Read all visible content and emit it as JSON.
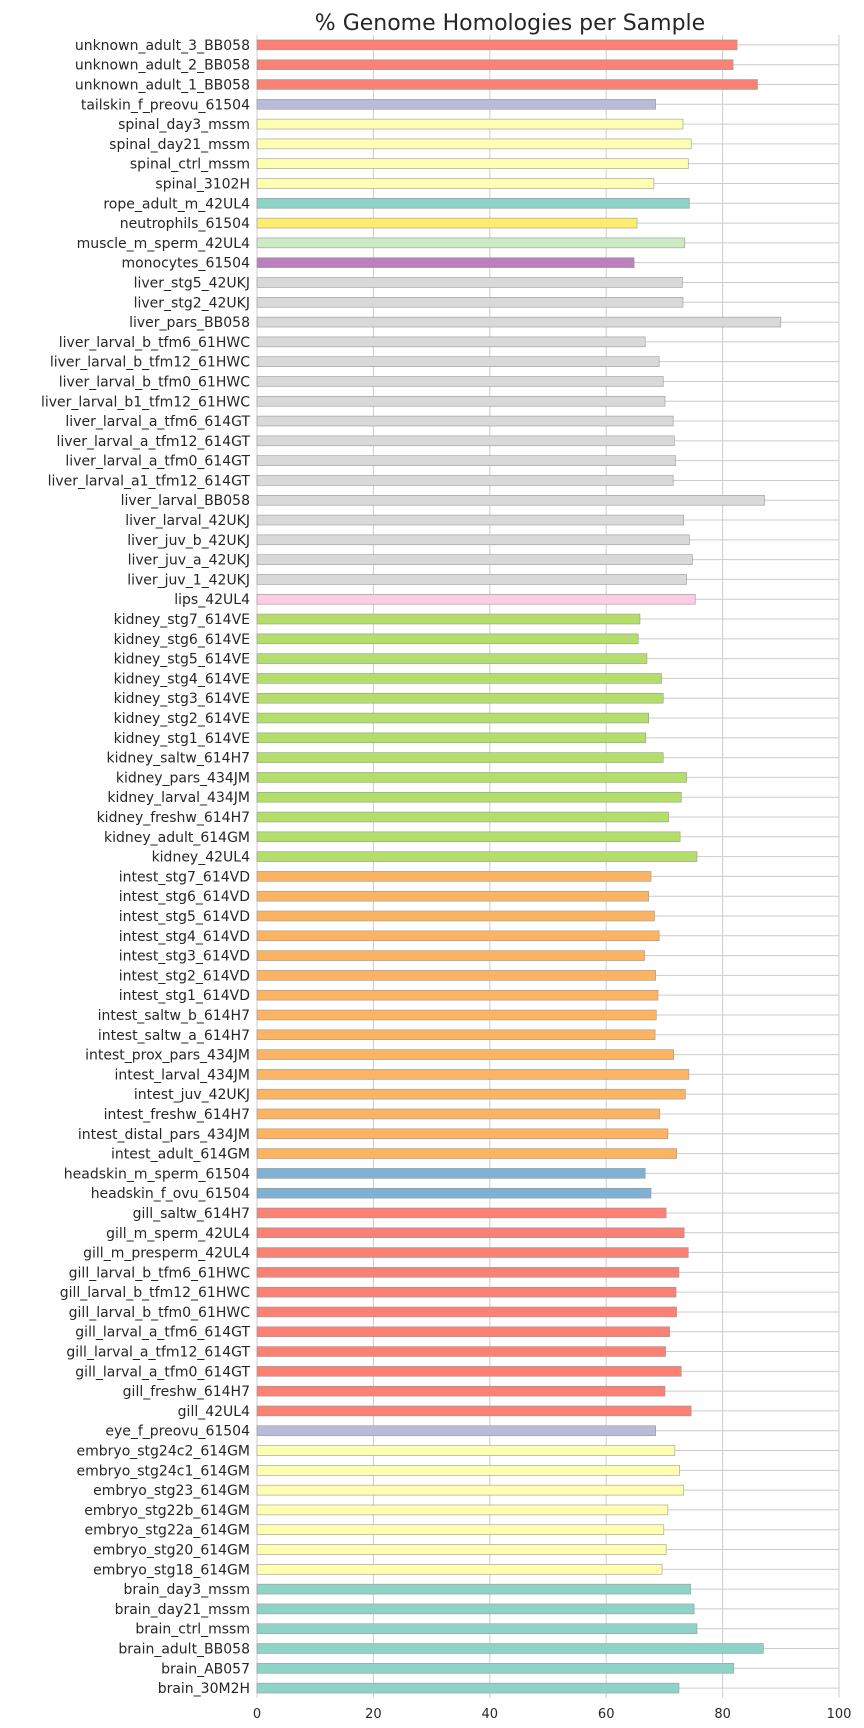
{
  "chart_data": {
    "type": "bar",
    "orientation": "horizontal",
    "title": "% Genome Homologies per Sample",
    "xlabel": "",
    "ylabel": "",
    "xlim": [
      0,
      100
    ],
    "xticks": [
      "0",
      "20",
      "40",
      "60",
      "80",
      "100"
    ],
    "grid": true,
    "legend": "none",
    "categories": [
      "unknown_adult_3_BB058",
      "unknown_adult_2_BB058",
      "unknown_adult_1_BB058",
      "tailskin_f_preovu_61504",
      "spinal_day3_mssm",
      "spinal_day21_mssm",
      "spinal_ctrl_mssm",
      "spinal_3102H",
      "rope_adult_m_42UL4",
      "neutrophils_61504",
      "muscle_m_sperm_42UL4",
      "monocytes_61504",
      "liver_stg5_42UKJ",
      "liver_stg2_42UKJ",
      "liver_pars_BB058",
      "liver_larval_b_tfm6_61HWC",
      "liver_larval_b_tfm12_61HWC",
      "liver_larval_b_tfm0_61HWC",
      "liver_larval_b1_tfm12_61HWC",
      "liver_larval_a_tfm6_614GT",
      "liver_larval_a_tfm12_614GT",
      "liver_larval_a_tfm0_614GT",
      "liver_larval_a1_tfm12_614GT",
      "liver_larval_BB058",
      "liver_larval_42UKJ",
      "liver_juv_b_42UKJ",
      "liver_juv_a_42UKJ",
      "liver_juv_1_42UKJ",
      "lips_42UL4",
      "kidney_stg7_614VE",
      "kidney_stg6_614VE",
      "kidney_stg5_614VE",
      "kidney_stg4_614VE",
      "kidney_stg3_614VE",
      "kidney_stg2_614VE",
      "kidney_stg1_614VE",
      "kidney_saltw_614H7",
      "kidney_pars_434JM",
      "kidney_larval_434JM",
      "kidney_freshw_614H7",
      "kidney_adult_614GM",
      "kidney_42UL4",
      "intest_stg7_614VD",
      "intest_stg6_614VD",
      "intest_stg5_614VD",
      "intest_stg4_614VD",
      "intest_stg3_614VD",
      "intest_stg2_614VD",
      "intest_stg1_614VD",
      "intest_saltw_b_614H7",
      "intest_saltw_a_614H7",
      "intest_prox_pars_434JM",
      "intest_larval_434JM",
      "intest_juv_42UKJ",
      "intest_freshw_614H7",
      "intest_distal_pars_434JM",
      "intest_adult_614GM",
      "headskin_m_sperm_61504",
      "headskin_f_ovu_61504",
      "gill_saltw_614H7",
      "gill_m_sperm_42UL4",
      "gill_m_presperm_42UL4",
      "gill_larval_b_tfm6_61HWC",
      "gill_larval_b_tfm12_61HWC",
      "gill_larval_b_tfm0_61HWC",
      "gill_larval_a_tfm6_614GT",
      "gill_larval_a_tfm12_614GT",
      "gill_larval_a_tfm0_614GT",
      "gill_freshw_614H7",
      "gill_42UL4",
      "eye_f_preovu_61504",
      "embryo_stg24c2_614GM",
      "embryo_stg24c1_614GM",
      "embryo_stg23_614GM",
      "embryo_stg22b_614GM",
      "embryo_stg22a_614GM",
      "embryo_stg20_614GM",
      "embryo_stg18_614GM",
      "brain_day3_mssm",
      "brain_day21_mssm",
      "brain_ctrl_mssm",
      "brain_adult_BB058",
      "brain_AB057",
      "brain_30M2H"
    ],
    "values": [
      82.5,
      81.8,
      86.0,
      68.5,
      73.2,
      74.6,
      74.1,
      68.2,
      74.3,
      65.3,
      73.5,
      64.8,
      73.1,
      73.2,
      90.0,
      66.7,
      69.1,
      69.8,
      70.1,
      71.5,
      71.7,
      71.9,
      71.5,
      87.2,
      73.3,
      74.3,
      74.8,
      73.8,
      75.3,
      65.8,
      65.5,
      67.0,
      69.5,
      69.8,
      67.3,
      66.8,
      69.8,
      73.8,
      72.9,
      70.7,
      72.7,
      75.6,
      67.7,
      67.3,
      68.3,
      69.1,
      66.6,
      68.5,
      68.9,
      68.6,
      68.4,
      71.6,
      74.2,
      73.6,
      69.2,
      70.6,
      72.1,
      66.7,
      67.7,
      70.3,
      73.4,
      74.1,
      72.5,
      72.0,
      72.1,
      70.9,
      70.2,
      72.9,
      70.1,
      74.6,
      68.5,
      71.8,
      72.6,
      73.3,
      70.6,
      69.9,
      70.3,
      69.6,
      74.5,
      75.1,
      75.6,
      87.0,
      81.9,
      72.5
    ],
    "colors": [
      "#fa8174",
      "#fa8174",
      "#fa8174",
      "#bcbad9",
      "#ffffb2",
      "#ffffb2",
      "#ffffb2",
      "#ffffb2",
      "#8dd3c7",
      "#ffed6f",
      "#ccebc5",
      "#bc80bd",
      "#d9d9d9",
      "#d9d9d9",
      "#d9d9d9",
      "#d9d9d9",
      "#d9d9d9",
      "#d9d9d9",
      "#d9d9d9",
      "#d9d9d9",
      "#d9d9d9",
      "#d9d9d9",
      "#d9d9d9",
      "#d9d9d9",
      "#d9d9d9",
      "#d9d9d9",
      "#d9d9d9",
      "#d9d9d9",
      "#fccde5",
      "#b3de69",
      "#b3de69",
      "#b3de69",
      "#b3de69",
      "#b3de69",
      "#b3de69",
      "#b3de69",
      "#b3de69",
      "#b3de69",
      "#b3de69",
      "#b3de69",
      "#b3de69",
      "#b3de69",
      "#fdb462",
      "#fdb462",
      "#fdb462",
      "#fdb462",
      "#fdb462",
      "#fdb462",
      "#fdb462",
      "#fdb462",
      "#fdb462",
      "#fdb462",
      "#fdb462",
      "#fdb462",
      "#fdb462",
      "#fdb462",
      "#fdb462",
      "#80b1d3",
      "#80b1d3",
      "#fa8174",
      "#fa8174",
      "#fa8174",
      "#fa8174",
      "#fa8174",
      "#fa8174",
      "#fa8174",
      "#fa8174",
      "#fa8174",
      "#fa8174",
      "#fa8174",
      "#bcbad9",
      "#ffffb2",
      "#ffffb2",
      "#ffffb2",
      "#ffffb2",
      "#ffffb2",
      "#ffffb2",
      "#ffffb2",
      "#8dd3c7",
      "#8dd3c7",
      "#8dd3c7",
      "#8dd3c7",
      "#8dd3c7",
      "#8dd3c7"
    ],
    "grid_color": "#cccccc",
    "bar_edge_color": "#999999"
  }
}
